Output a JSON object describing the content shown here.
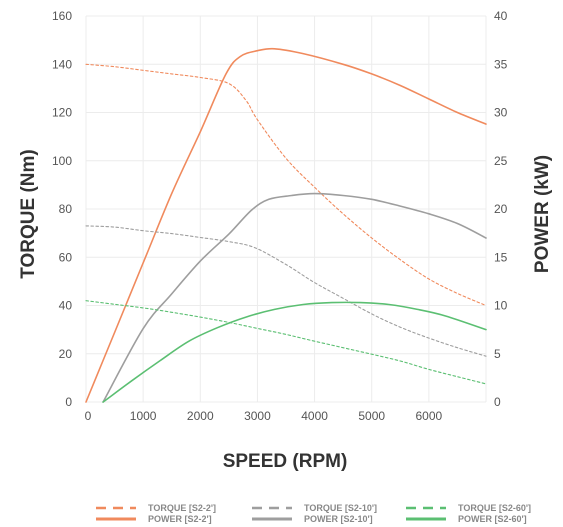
{
  "chart_data": {
    "type": "line",
    "xlabel": "SPEED (RPM)",
    "ylabel_left": "TORQUE (Nm)",
    "ylabel_right": "POWER (kW)",
    "xlim": [
      0,
      7000
    ],
    "ylim_left": [
      0,
      160
    ],
    "ylim_right": [
      0,
      40
    ],
    "x_ticks": [
      0,
      1000,
      2000,
      3000,
      4000,
      5000,
      6000
    ],
    "y_left_ticks": [
      0,
      20,
      40,
      60,
      80,
      100,
      120,
      140,
      160
    ],
    "y_right_ticks": [
      0,
      5,
      10,
      15,
      20,
      25,
      30,
      35,
      40
    ],
    "grid": true,
    "legend_position": "bottom",
    "series": [
      {
        "name": "TORQUE [S2-2']",
        "axis": "left",
        "style": "dashed",
        "color": "#f08a5d",
        "points": [
          [
            0,
            140
          ],
          [
            500,
            139
          ],
          [
            1000,
            137.5
          ],
          [
            1500,
            136
          ],
          [
            2000,
            134.5
          ],
          [
            2500,
            132
          ],
          [
            2800,
            125
          ],
          [
            3000,
            117
          ],
          [
            3500,
            101
          ],
          [
            4000,
            89
          ],
          [
            4500,
            78
          ],
          [
            5000,
            68
          ],
          [
            5500,
            59
          ],
          [
            6000,
            51
          ],
          [
            6500,
            45
          ],
          [
            7000,
            40
          ]
        ]
      },
      {
        "name": "POWER [S2-2']",
        "axis": "right",
        "style": "solid",
        "color": "#f08a5d",
        "points": [
          [
            0,
            0
          ],
          [
            500,
            7.2
          ],
          [
            1000,
            14.4
          ],
          [
            1500,
            21.6
          ],
          [
            2000,
            28
          ],
          [
            2450,
            34
          ],
          [
            2700,
            35.8
          ],
          [
            3000,
            36.4
          ],
          [
            3300,
            36.6
          ],
          [
            3800,
            36.1
          ],
          [
            4500,
            35
          ],
          [
            5000,
            34
          ],
          [
            5500,
            32.8
          ],
          [
            6000,
            31.4
          ],
          [
            6500,
            30
          ],
          [
            7000,
            28.8
          ]
        ]
      },
      {
        "name": "TORQUE [S2-10']",
        "axis": "left",
        "style": "dashed",
        "color": "#9e9e9e",
        "points": [
          [
            0,
            73
          ],
          [
            500,
            72.5
          ],
          [
            1000,
            71
          ],
          [
            1500,
            69.8
          ],
          [
            2000,
            68.2
          ],
          [
            2500,
            66.5
          ],
          [
            2950,
            64
          ],
          [
            3500,
            57
          ],
          [
            4000,
            49.5
          ],
          [
            4500,
            43
          ],
          [
            5000,
            36.5
          ],
          [
            5500,
            31
          ],
          [
            6000,
            26.5
          ],
          [
            6500,
            22.5
          ],
          [
            7000,
            19
          ]
        ]
      },
      {
        "name": "POWER [S2-10']",
        "axis": "right",
        "style": "solid",
        "color": "#9e9e9e",
        "points": [
          [
            300,
            0
          ],
          [
            1000,
            7.6
          ],
          [
            1500,
            11.2
          ],
          [
            2000,
            14.6
          ],
          [
            2500,
            17.4
          ],
          [
            2900,
            19.9
          ],
          [
            3200,
            21
          ],
          [
            3600,
            21.4
          ],
          [
            4000,
            21.6
          ],
          [
            4500,
            21.4
          ],
          [
            5000,
            21
          ],
          [
            5500,
            20.3
          ],
          [
            6000,
            19.5
          ],
          [
            6500,
            18.5
          ],
          [
            7000,
            17
          ]
        ]
      },
      {
        "name": "TORQUE [S2-60']",
        "axis": "left",
        "style": "dashed",
        "color": "#5bbf72",
        "points": [
          [
            0,
            42
          ],
          [
            500,
            40.5
          ],
          [
            1000,
            39
          ],
          [
            1500,
            37.2
          ],
          [
            2000,
            35.2
          ],
          [
            2500,
            33
          ],
          [
            3000,
            30.5
          ],
          [
            3500,
            28
          ],
          [
            4000,
            25.2
          ],
          [
            4500,
            22.5
          ],
          [
            5000,
            19.8
          ],
          [
            5500,
            17
          ],
          [
            6000,
            13.5
          ],
          [
            6500,
            10.5
          ],
          [
            7000,
            7.5
          ]
        ]
      },
      {
        "name": "POWER [S2-60']",
        "axis": "right",
        "style": "solid",
        "color": "#5bbf72",
        "points": [
          [
            300,
            0
          ],
          [
            800,
            2.2
          ],
          [
            1300,
            4.3
          ],
          [
            1800,
            6.3
          ],
          [
            2300,
            7.7
          ],
          [
            2800,
            8.8
          ],
          [
            3300,
            9.6
          ],
          [
            3800,
            10.1
          ],
          [
            4300,
            10.3
          ],
          [
            4800,
            10.3
          ],
          [
            5300,
            10.1
          ],
          [
            5800,
            9.6
          ],
          [
            6300,
            8.9
          ],
          [
            7000,
            7.5
          ]
        ]
      }
    ]
  },
  "legend": [
    {
      "torque": "TORQUE [S2-2']",
      "power": "POWER [S2-2']",
      "color": "#f08a5d"
    },
    {
      "torque": "TORQUE [S2-10']",
      "power": "POWER [S2-10']",
      "color": "#9e9e9e"
    },
    {
      "torque": "TORQUE [S2-60']",
      "power": "POWER [S2-60']",
      "color": "#5bbf72"
    }
  ]
}
